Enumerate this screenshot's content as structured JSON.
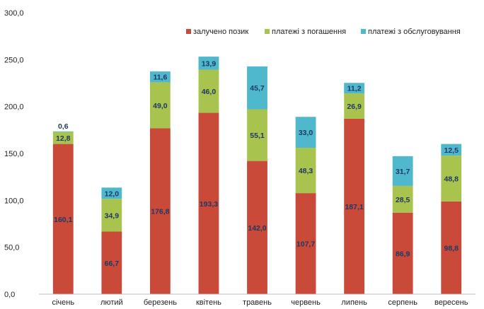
{
  "chart_data": {
    "type": "bar",
    "stacked": true,
    "categories": [
      "січень",
      "лютий",
      "березень",
      "квітень",
      "травень",
      "червень",
      "липень",
      "серпень",
      "вересень"
    ],
    "series": [
      {
        "name": "залучено позик",
        "color": "#c94a38",
        "label_color": "#1f3864",
        "values": [
          160.1,
          66.7,
          176.8,
          193.3,
          142.0,
          107.7,
          187.1,
          86.9,
          98.8
        ],
        "labels": [
          "160,1",
          "66,7",
          "176,8",
          "193,3",
          "142,0",
          "107,7",
          "187,1",
          "86,9",
          "98,8"
        ]
      },
      {
        "name": "платежі з погашення",
        "color": "#a9c34f",
        "label_color": "#1f3864",
        "values": [
          12.8,
          34.9,
          49.0,
          46.0,
          55.1,
          48.3,
          26.9,
          28.5,
          48.8
        ],
        "labels": [
          "12,8",
          "34,9",
          "49,0",
          "46,0",
          "55,1",
          "48,3",
          "26,9",
          "28,5",
          "48,8"
        ]
      },
      {
        "name": "платежі з обслуговування",
        "color": "#4fb8cc",
        "label_color": "#1f3864",
        "values": [
          0.6,
          12.0,
          11.6,
          13.9,
          45.7,
          33.0,
          11.2,
          31.7,
          12.5
        ],
        "labels": [
          "0,6",
          "12,0",
          "11,6",
          "13,9",
          "45,7",
          "33,0",
          "11,2",
          "31,7",
          "12,5"
        ]
      }
    ],
    "y_ticks": [
      "0,0",
      "50,0",
      "100,0",
      "150,0",
      "200,0",
      "250,0",
      "300,0"
    ],
    "ylim": [
      0,
      300
    ],
    "grid": false,
    "legend_position": "top-right"
  }
}
